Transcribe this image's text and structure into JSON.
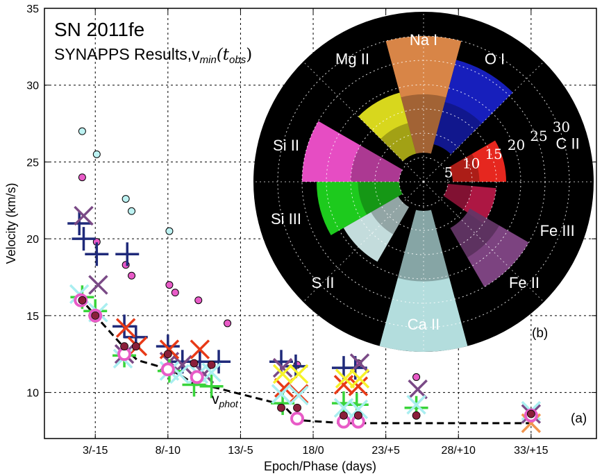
{
  "chart_data": {
    "type": "scatter",
    "title": "SN 2011fe",
    "subtitle_main": "SYNAPPS Results,v",
    "subtitle_sub": "min",
    "subtitle_tail": "(t",
    "subtitle_tail_sub": "obs",
    "subtitle_close": ")",
    "xlabel": "Epoch/Phase (days)",
    "ylabel": "Velocity (km/s)",
    "xlim": [
      -0.5,
      37.5
    ],
    "ylim": [
      7,
      35
    ],
    "xticks": [
      {
        "value": 3,
        "label": "3/-15"
      },
      {
        "value": 8,
        "label": "8/-10"
      },
      {
        "value": 13,
        "label": "13/-5"
      },
      {
        "value": 18,
        "label": "18/0"
      },
      {
        "value": 23,
        "label": "23/+5"
      },
      {
        "value": 28,
        "label": "28/+10"
      },
      {
        "value": 33,
        "label": "33/+15"
      }
    ],
    "yticks": [
      {
        "value": 10,
        "label": "10"
      },
      {
        "value": 15,
        "label": "15"
      },
      {
        "value": 20,
        "label": "20"
      },
      {
        "value": 25,
        "label": "25"
      },
      {
        "value": 30,
        "label": "30"
      },
      {
        "value": 35,
        "label": "35"
      }
    ],
    "grid": true,
    "panel_label": "(a)",
    "vphot_label": "v",
    "vphot_sub": "phot",
    "vphot_line": [
      [
        1.9,
        16.2
      ],
      [
        3.1,
        14.9
      ],
      [
        5.1,
        12.8
      ],
      [
        5.9,
        12.1
      ],
      [
        8.1,
        11.5
      ],
      [
        8.9,
        11.1
      ],
      [
        9.9,
        10.5
      ],
      [
        10.9,
        10.4
      ],
      [
        15.9,
        9.2
      ],
      [
        16.9,
        8.2
      ],
      [
        20.1,
        8.0
      ],
      [
        25.1,
        8.0
      ],
      [
        33.1,
        8.0
      ]
    ],
    "colors": {
      "navy": "#1f2a7a",
      "purple": "#7a4a86",
      "red": "#e83a17",
      "orange": "#f0944d",
      "yellow": "#f6f22b",
      "green": "#39d43a",
      "cyan": "#a9eef0",
      "magenta": "#e85bc7",
      "maroon": "#8a1f3a",
      "light_cyan": "#bdf2f2"
    },
    "series": [
      {
        "marker": "circle",
        "color_key": "light_cyan",
        "points": [
          [
            2.1,
            27.0
          ],
          [
            3.1,
            25.5
          ],
          [
            5.1,
            22.6
          ],
          [
            5.5,
            21.8
          ],
          [
            8.1,
            20.5
          ]
        ]
      },
      {
        "marker": "circle",
        "color_key": "magenta",
        "points": [
          [
            2.1,
            24.0
          ],
          [
            3.1,
            19.8
          ],
          [
            5.1,
            18.3
          ],
          [
            5.5,
            17.6
          ],
          [
            8.1,
            17.0
          ],
          [
            8.5,
            16.5
          ],
          [
            10.1,
            16.0
          ],
          [
            12.1,
            14.5
          ],
          [
            25.1,
            11.0
          ],
          [
            16.9,
            11.8
          ],
          [
            21.1,
            11.9
          ]
        ]
      },
      {
        "marker": "plus",
        "color_key": "navy",
        "points": [
          [
            1.9,
            21.0
          ],
          [
            2.2,
            20.0
          ],
          [
            3.1,
            19.0
          ],
          [
            5.2,
            19.0
          ],
          [
            5.0,
            14.3
          ],
          [
            5.8,
            13.6
          ],
          [
            8.0,
            13.0
          ],
          [
            9.0,
            12.0
          ],
          [
            10.2,
            12.0
          ],
          [
            11.5,
            12.0
          ],
          [
            15.8,
            12.0
          ],
          [
            16.8,
            11.7
          ],
          [
            20.1,
            11.6
          ],
          [
            20.9,
            11.6
          ]
        ]
      },
      {
        "marker": "cross",
        "color_key": "purple",
        "points": [
          [
            2.2,
            21.5
          ],
          [
            3.2,
            17.0
          ],
          [
            5.0,
            12.5
          ],
          [
            8.1,
            12.0
          ],
          [
            9.0,
            11.8
          ],
          [
            10.5,
            11.2
          ],
          [
            15.9,
            11.6
          ],
          [
            21.2,
            11.9
          ],
          [
            25.2,
            10.2
          ],
          [
            33.0,
            8.6
          ]
        ]
      },
      {
        "marker": "cross",
        "color_key": "red",
        "points": [
          [
            5.1,
            14.2
          ],
          [
            5.9,
            13.0
          ],
          [
            8.1,
            12.8
          ],
          [
            10.2,
            12.8
          ],
          [
            16.0,
            10.3
          ],
          [
            17.0,
            9.9
          ],
          [
            20.1,
            10.5
          ],
          [
            21.1,
            10.4
          ]
        ]
      },
      {
        "marker": "cross",
        "color_key": "yellow",
        "points": [
          [
            15.9,
            11.2
          ],
          [
            17.0,
            11.2
          ],
          [
            20.2,
            10.9
          ],
          [
            21.2,
            10.9
          ]
        ]
      },
      {
        "marker": "plus",
        "color_key": "green",
        "points": [
          [
            2.1,
            16.2
          ],
          [
            3.0,
            15.3
          ],
          [
            5.0,
            12.4
          ],
          [
            8.1,
            11.4
          ],
          [
            9.8,
            10.5
          ],
          [
            11.0,
            10.4
          ],
          [
            15.9,
            9.3
          ],
          [
            20.1,
            9.3
          ],
          [
            21.0,
            9.2
          ],
          [
            25.1,
            9.0
          ]
        ]
      },
      {
        "marker": "cross",
        "color_key": "cyan",
        "points": [
          [
            1.9,
            16.4
          ],
          [
            3.2,
            15.2
          ],
          [
            4.9,
            12.2
          ],
          [
            8.1,
            11.4
          ],
          [
            8.8,
            11.2
          ],
          [
            10.1,
            11.2
          ],
          [
            11.0,
            11.3
          ],
          [
            15.8,
            9.9
          ],
          [
            17.0,
            9.8
          ],
          [
            20.1,
            9.0
          ],
          [
            21.1,
            8.9
          ],
          [
            25.1,
            9.2
          ],
          [
            33.0,
            8.8
          ]
        ]
      },
      {
        "marker": "cross",
        "color_key": "orange",
        "points": [
          [
            33.0,
            8.0
          ]
        ]
      },
      {
        "marker": "ring",
        "color_key": "magenta",
        "points": [
          [
            2.0,
            16.0
          ],
          [
            3.0,
            15.0
          ],
          [
            5.0,
            12.5
          ],
          [
            8.0,
            11.5
          ],
          [
            10.0,
            11.0
          ],
          [
            16.9,
            8.3
          ],
          [
            20.1,
            8.1
          ],
          [
            21.1,
            8.1
          ],
          [
            33.0,
            8.5
          ]
        ]
      },
      {
        "marker": "dot",
        "color_key": "maroon",
        "points": [
          [
            2.1,
            16.0
          ],
          [
            3.0,
            15.0
          ],
          [
            5.0,
            13.0
          ],
          [
            5.8,
            13.0
          ],
          [
            8.0,
            12.5
          ],
          [
            9.8,
            11.9
          ],
          [
            11.0,
            11.8
          ],
          [
            15.8,
            9.0
          ],
          [
            16.9,
            9.0
          ],
          [
            20.1,
            8.5
          ],
          [
            21.1,
            8.5
          ],
          [
            25.1,
            8.5
          ],
          [
            33.0,
            8.6
          ]
        ]
      }
    ],
    "inset": {
      "type": "polar",
      "panel_label": "(b)",
      "radial_ticks": [
        "5",
        "10",
        "15",
        "20",
        "25",
        "30"
      ],
      "ions": [
        {
          "name": "Na I",
          "angle": 90,
          "color": "#f0934f",
          "vmin": 6,
          "vmax": 30
        },
        {
          "name": "O I",
          "angle": 60,
          "color": "#1a22d0",
          "vmin": 8,
          "vmax": 26
        },
        {
          "name": "C II",
          "angle": 15,
          "color": "#ff2b22",
          "vmin": 6,
          "vmax": 17
        },
        {
          "name": "Fe III",
          "angle": -20,
          "color": "#c01a4a",
          "vmin": 5,
          "vmax": 15
        },
        {
          "name": "Fe II",
          "angle": -45,
          "color": "#8a4a8e",
          "vmin": 11,
          "vmax": 25
        },
        {
          "name": "Ca II",
          "angle": -90,
          "color": "#c7f5f5",
          "vmin": 6,
          "vmax": 35
        },
        {
          "name": "S II",
          "angle": -135,
          "color": "#d8f4f4",
          "vmin": 6,
          "vmax": 19
        },
        {
          "name": "Si III",
          "angle": -165,
          "color": "#20e020",
          "vmin": 5,
          "vmax": 22
        },
        {
          "name": "Si II",
          "angle": 165,
          "color": "#ff55d8",
          "vmin": 5,
          "vmax": 25
        },
        {
          "name": "Mg II",
          "angle": 120,
          "color": "#f0ee20",
          "vmin": 6,
          "vmax": 19
        }
      ]
    }
  }
}
